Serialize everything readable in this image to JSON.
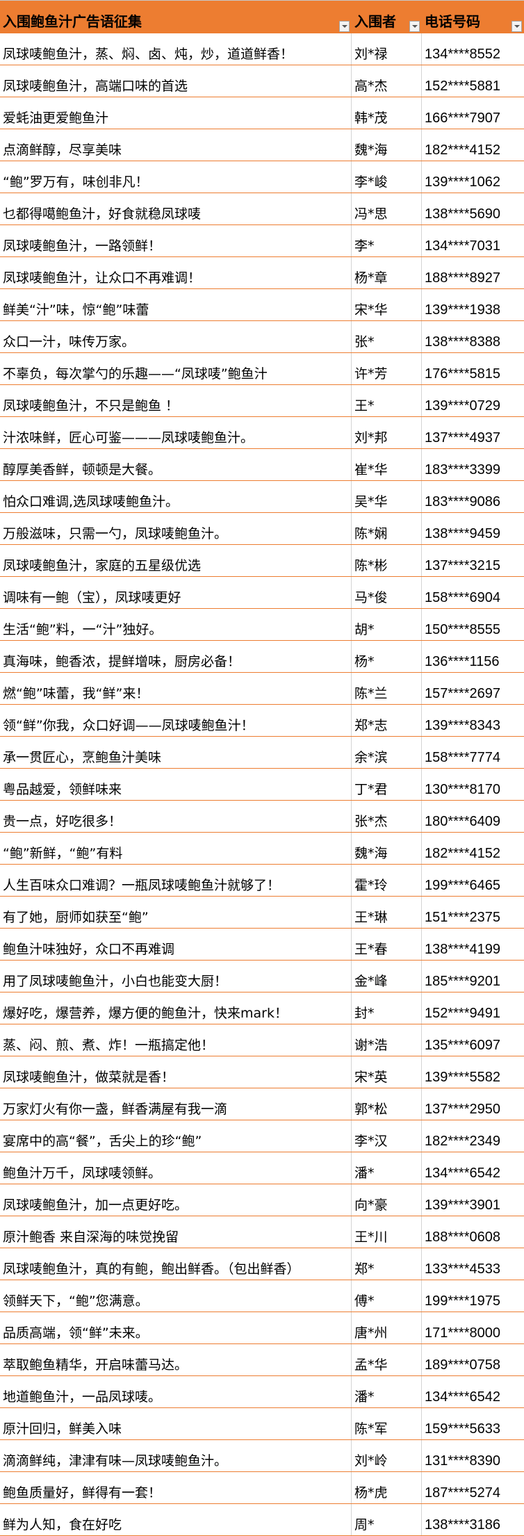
{
  "header": {
    "slogan": "入围鲍鱼汁广告语征集",
    "finalist": "入围者",
    "phone": "电话号码",
    "filter_icon": "dropdown-filter-icon"
  },
  "colors": {
    "header_bg": "#ed7d31",
    "row_border": "#ed7d31"
  },
  "rows": [
    [
      "凤球唛鲍鱼汁，蒸、焖、卤、炖，炒，道道鲜香！",
      "刘*禄",
      "134****8552"
    ],
    [
      "凤球唛鲍鱼汁，高端口味的首选",
      "高*杰",
      "152****5881"
    ],
    [
      "爱蚝油更爱鲍鱼汁",
      "韩*茂",
      "166****7907"
    ],
    [
      "点滴鲜醇，尽享美味",
      "魏*海",
      "182****4152"
    ],
    [
      "“鲍”罗万有，味创非凡！",
      "李*峻",
      "139****1062"
    ],
    [
      "乜都得噶鲍鱼汁，好食就稳凤球唛",
      "冯*思",
      "138****5690"
    ],
    [
      "凤球唛鲍鱼汁，一路领鲜！",
      "李*",
      "134****7031"
    ],
    [
      "凤球唛鲍鱼汁，让众口不再难调！",
      "杨*章",
      "188****8927"
    ],
    [
      "鲜美“汁”味，惊“鲍”味蕾",
      "宋*华",
      "139****1938"
    ],
    [
      "众口一汁，味传万家。",
      "张*",
      "138****8388"
    ],
    [
      "不辜负，每次掌勺的乐趣——“凤球唛”鲍鱼汁",
      "许*芳",
      "176****5815"
    ],
    [
      "凤球唛鲍鱼汁，不只是鲍鱼 ！",
      "王*",
      "139****0729"
    ],
    [
      "汁浓味鲜，匠心可鉴———凤球唛鲍鱼汁。",
      "刘*邦",
      "137****4937"
    ],
    [
      "醇厚美香鲜，顿顿是大餐。",
      "崔*华",
      "183****3399"
    ],
    [
      "怕众口难调,选凤球唛鲍鱼汁。",
      "吴*华",
      "183****9086"
    ],
    [
      "万般滋味，只需一勺，凤球唛鲍鱼汁。",
      "陈*娴",
      "138****9459"
    ],
    [
      "凤球唛鲍鱼汁，家庭的五星级优选",
      "陈*彬",
      "137****3215"
    ],
    [
      "调味有一鲍（宝），凤球唛更好",
      "马*俊",
      "158****6904"
    ],
    [
      "生活“鲍”料，一“汁”独好。",
      "胡*",
      "150****8555"
    ],
    [
      "真海味，鲍香浓，提鲜增味，厨房必备！",
      "杨*",
      "136****1156"
    ],
    [
      "燃“鲍”味蕾，我“鲜”来！",
      "陈*兰",
      "157****2697"
    ],
    [
      "领“鲜”你我，众口好调——凤球唛鲍鱼汁！",
      "郑*志",
      "139****8343"
    ],
    [
      "承一贯匠心，烹鲍鱼汁美味",
      "余*滨",
      "158****7774"
    ],
    [
      "粤品越爱，领鲜味来",
      "丁*君",
      "130****8170"
    ],
    [
      "贵一点，好吃很多！",
      "张*杰",
      "180****6409"
    ],
    [
      "“鲍”新鲜，“鲍”有料",
      "魏*海",
      "182****4152"
    ],
    [
      "人生百味众口难调？一瓶凤球唛鲍鱼汁就够了！",
      "霍*玲",
      "199****6465"
    ],
    [
      "有了她，厨师如获至“鲍”",
      "王*琳",
      "151****2375"
    ],
    [
      "鲍鱼汁味独好，众口不再难调",
      "王*春",
      "138****4199"
    ],
    [
      "用了凤球唛鲍鱼汁，小白也能变大厨！",
      "金*峰",
      "185****9201"
    ],
    [
      "爆好吃，爆营养，爆方便的鲍鱼汁，快来mark！",
      "封*",
      "152****9491"
    ],
    [
      "蒸、闷、煎、煮、炸！一瓶搞定他！",
      "谢*浩",
      "135****6097"
    ],
    [
      "凤球唛鲍鱼汁，做菜就是香！",
      "宋*英",
      "139****5582"
    ],
    [
      "万家灯火有你一盏，鲜香满屋有我一滴",
      "郭*松",
      "137****2950"
    ],
    [
      "宴席中的高“餐”，舌尖上的珍“鲍”",
      "李*汉",
      "182****2349"
    ],
    [
      "鲍鱼汁万千，凤球唛领鲜。",
      "潘*",
      "134****6542"
    ],
    [
      "凤球唛鲍鱼汁，加一点更好吃。",
      "向*豪",
      "139****3901"
    ],
    [
      "原汁鲍香 来自深海的味觉挽留",
      "王*川",
      "188****0608"
    ],
    [
      "凤球唛鲍鱼汁，真的有鲍，鲍出鲜香。（包出鲜香）",
      "郑*",
      "133****4533"
    ],
    [
      "领鲜天下，“鲍”您满意。",
      "傅*",
      "199****1975"
    ],
    [
      "品质高端，领“鲜”未来。",
      "唐*州",
      "171****8000"
    ],
    [
      "萃取鲍鱼精华，开启味蕾马达。",
      "孟*华",
      "189****0758"
    ],
    [
      "地道鲍鱼汁，一品凤球唛。",
      "潘*",
      "134****6542"
    ],
    [
      "原汁回归，鲜美入味",
      "陈*军",
      "159****5633"
    ],
    [
      "滴滴鲜纯，津津有味—凤球唛鲍鱼汁。",
      "刘*岭",
      "131****8390"
    ],
    [
      "鲍鱼质量好，鲜得有一套！",
      "杨*虎",
      "187****5274"
    ],
    [
      "鲜为人知，食在好吃",
      "周*",
      "138****3186"
    ]
  ]
}
